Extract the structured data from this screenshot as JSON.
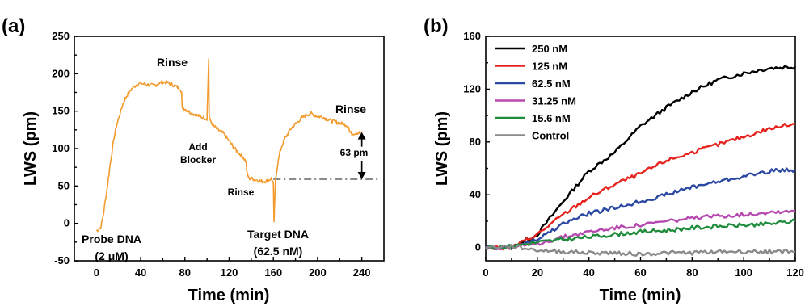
{
  "chart_data": [
    {
      "panel_label": "(a)",
      "type": "line",
      "xlabel": "Time (min)",
      "ylabel": "LWS (pm)",
      "xlim": [
        -20,
        260
      ],
      "ylim": [
        -50,
        250
      ],
      "xticks": [
        0,
        40,
        80,
        120,
        160,
        200,
        240
      ],
      "yticks": [
        -50,
        0,
        50,
        100,
        150,
        200,
        250
      ],
      "line_color": "#f39a2c",
      "series": [
        {
          "x": [
            0,
            2,
            4,
            6,
            8,
            10,
            12,
            14,
            16,
            18,
            20,
            22,
            24,
            26,
            28,
            30,
            32,
            34,
            36,
            38,
            40,
            44,
            48,
            52,
            56,
            60,
            64,
            68,
            72,
            76,
            77,
            77.5,
            80,
            85,
            90,
            95,
            100,
            101.5,
            102,
            104,
            106,
            110,
            115,
            120,
            125,
            130,
            133,
            135.5,
            136,
            138,
            140,
            145,
            150,
            155,
            158,
            160,
            160.6,
            161,
            162,
            164,
            166,
            168,
            170,
            175,
            180,
            185,
            190,
            194,
            196,
            200,
            205,
            210,
            215,
            220,
            225,
            228,
            229,
            231,
            235,
            240
          ],
          "y": [
            -10,
            -8,
            -5,
            10,
            30,
            50,
            75,
            95,
            115,
            130,
            140,
            150,
            160,
            167,
            172,
            176,
            180,
            183,
            185,
            186,
            187,
            186,
            185,
            184,
            187,
            189,
            188,
            186,
            183,
            180,
            175,
            155,
            153,
            148,
            145,
            142,
            140,
            220,
            140,
            135,
            130,
            125,
            120,
            110,
            100,
            92,
            88,
            82,
            68,
            60,
            60,
            58,
            56,
            57,
            60,
            55,
            0,
            20,
            60,
            80,
            95,
            105,
            112,
            125,
            133,
            140,
            145,
            147,
            145,
            143,
            142,
            138,
            136,
            134,
            132,
            130,
            122,
            120,
            121,
            122
          ]
        }
      ],
      "annotations": [
        {
          "text": "Rinse",
          "at_x": 76
        },
        {
          "text": "Add",
          "at_x": 102
        },
        {
          "text": "Blocker",
          "at_x": 102
        },
        {
          "text": "Rinse",
          "at_x": 136
        },
        {
          "text": "Rinse",
          "at_x": 228
        },
        {
          "text": "63 pm",
          "at_x": 240
        },
        {
          "text": "Probe DNA",
          "at_x": 0
        },
        {
          "text": "(2 μM)",
          "at_x": 0
        },
        {
          "text": "Target DNA",
          "at_x": 160
        },
        {
          "text": "(62.5 nM)",
          "at_x": 160
        }
      ],
      "baseline_y": 59,
      "baseline_color": "#8a8a8a",
      "arrow": {
        "from_y": 122,
        "to_y": 59,
        "at_x": 240
      }
    },
    {
      "panel_label": "(b)",
      "type": "line",
      "xlabel": "Time (min)",
      "ylabel": "LWS (pm)",
      "xlim": [
        0,
        120
      ],
      "ylim": [
        -10,
        160
      ],
      "xticks": [
        0,
        20,
        40,
        60,
        80,
        100,
        120
      ],
      "yticks": [
        0,
        40,
        80,
        120,
        160
      ],
      "legend": "top-left",
      "x": [
        0,
        10,
        20,
        30,
        40,
        50,
        60,
        70,
        80,
        90,
        100,
        110,
        120
      ],
      "series": [
        {
          "name": "250 nM",
          "color": "#000000",
          "values": [
            0,
            0,
            10,
            35,
            58,
            72,
            92,
            106,
            118,
            127,
            132,
            136,
            137
          ]
        },
        {
          "name": "125 nM",
          "color": "#e6231f",
          "values": [
            0,
            0,
            10,
            25,
            38,
            48,
            56,
            66,
            72,
            78,
            84,
            90,
            94
          ]
        },
        {
          "name": "62.5 nM",
          "color": "#2b48a2",
          "values": [
            0,
            0,
            6,
            18,
            26,
            30,
            35,
            40,
            46,
            50,
            54,
            58,
            59
          ]
        },
        {
          "name": "31.25 nM",
          "color": "#b549b0",
          "values": [
            0,
            0,
            3,
            8,
            12,
            15,
            17,
            20,
            22,
            24,
            25,
            27,
            28
          ]
        },
        {
          "name": "15.6 nM",
          "color": "#1f8c3c",
          "values": [
            0,
            1,
            4,
            6,
            8,
            10,
            12,
            13,
            15,
            16,
            17,
            18,
            20
          ]
        },
        {
          "name": "Control",
          "color": "#8a8a8a",
          "values": [
            0,
            1,
            -2,
            -3,
            -4,
            -4,
            -5,
            -4,
            -4,
            -3,
            -3,
            -3,
            -3
          ]
        }
      ]
    }
  ]
}
